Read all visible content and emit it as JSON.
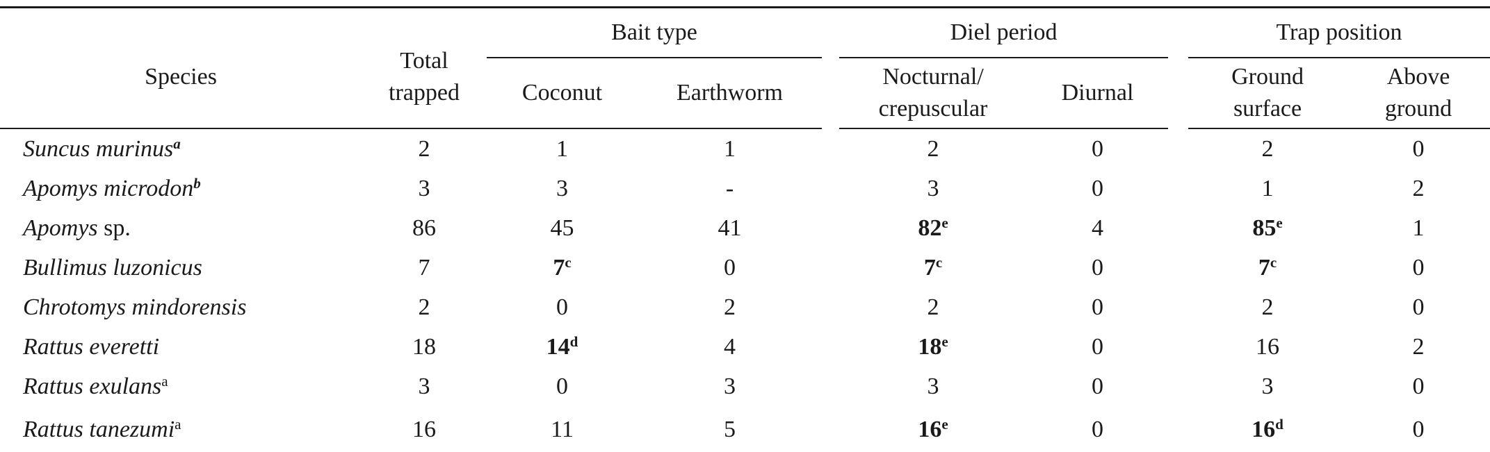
{
  "colors": {
    "text": "#1a1a1a",
    "rule": "#1a1a1a",
    "background": "#ffffff"
  },
  "table": {
    "headers": {
      "species": "Species",
      "total": "Total\ntrapped",
      "groups": [
        {
          "label": "Bait type",
          "cols": [
            "Coconut",
            "Earthworm"
          ]
        },
        {
          "label": "Diel period",
          "cols": [
            "Nocturnal/\ncrepuscular",
            "Diurnal"
          ]
        },
        {
          "label": "Trap position",
          "cols": [
            "Ground\nsurface",
            "Above\nground"
          ]
        }
      ]
    },
    "rows": [
      {
        "italic": "Suncus murinus",
        "roman": "",
        "sup": "a",
        "sup_style": "bold-italic",
        "cells": [
          {
            "v": "2"
          },
          {
            "v": "1"
          },
          {
            "v": "1"
          },
          {
            "v": "2"
          },
          {
            "v": "0"
          },
          {
            "v": "2"
          },
          {
            "v": "0"
          }
        ]
      },
      {
        "italic": "Apomys microdon",
        "roman": "",
        "sup": "b",
        "sup_style": "bold-italic",
        "cells": [
          {
            "v": "3"
          },
          {
            "v": "3"
          },
          {
            "v": "-"
          },
          {
            "v": "3"
          },
          {
            "v": "0"
          },
          {
            "v": "1"
          },
          {
            "v": "2"
          }
        ]
      },
      {
        "italic": "Apomys",
        "roman": " sp.",
        "sup": "",
        "sup_style": "",
        "cells": [
          {
            "v": "86"
          },
          {
            "v": "45"
          },
          {
            "v": "41"
          },
          {
            "v": "82",
            "sup": "e",
            "bold": true
          },
          {
            "v": "4"
          },
          {
            "v": "85",
            "sup": "e",
            "bold": true
          },
          {
            "v": "1"
          }
        ]
      },
      {
        "italic": "Bullimus luzonicus",
        "roman": "",
        "sup": "",
        "sup_style": "",
        "cells": [
          {
            "v": "7"
          },
          {
            "v": "7",
            "sup": "c",
            "bold": true
          },
          {
            "v": "0"
          },
          {
            "v": "7",
            "sup": "c",
            "bold": true
          },
          {
            "v": "0"
          },
          {
            "v": "7",
            "sup": "c",
            "bold": true
          },
          {
            "v": "0"
          }
        ]
      },
      {
        "italic": "Chrotomys mindorensis",
        "roman": "",
        "sup": "",
        "sup_style": "",
        "cells": [
          {
            "v": "2"
          },
          {
            "v": "0"
          },
          {
            "v": "2"
          },
          {
            "v": "2"
          },
          {
            "v": "0"
          },
          {
            "v": "2"
          },
          {
            "v": "0"
          }
        ]
      },
      {
        "italic": "Rattus everetti",
        "roman": "",
        "sup": "",
        "sup_style": "",
        "cells": [
          {
            "v": "18"
          },
          {
            "v": "14",
            "sup": "d",
            "bold": true
          },
          {
            "v": "4"
          },
          {
            "v": "18",
            "sup": "e",
            "bold": true
          },
          {
            "v": "0"
          },
          {
            "v": "16"
          },
          {
            "v": "2"
          }
        ]
      },
      {
        "italic": "Rattus exulans",
        "roman": "",
        "sup": "a",
        "sup_style": "normal",
        "cells": [
          {
            "v": "3"
          },
          {
            "v": "0"
          },
          {
            "v": "3"
          },
          {
            "v": "3"
          },
          {
            "v": "0"
          },
          {
            "v": "3"
          },
          {
            "v": "0"
          }
        ]
      },
      {
        "italic": "Rattus tanezumi",
        "roman": "",
        "sup": "a",
        "sup_style": "normal",
        "cells": [
          {
            "v": "16"
          },
          {
            "v": "11"
          },
          {
            "v": "5"
          },
          {
            "v": "16",
            "sup": "e",
            "bold": true
          },
          {
            "v": "0"
          },
          {
            "v": "16",
            "sup": "d",
            "bold": true
          },
          {
            "v": "0"
          }
        ]
      }
    ]
  }
}
